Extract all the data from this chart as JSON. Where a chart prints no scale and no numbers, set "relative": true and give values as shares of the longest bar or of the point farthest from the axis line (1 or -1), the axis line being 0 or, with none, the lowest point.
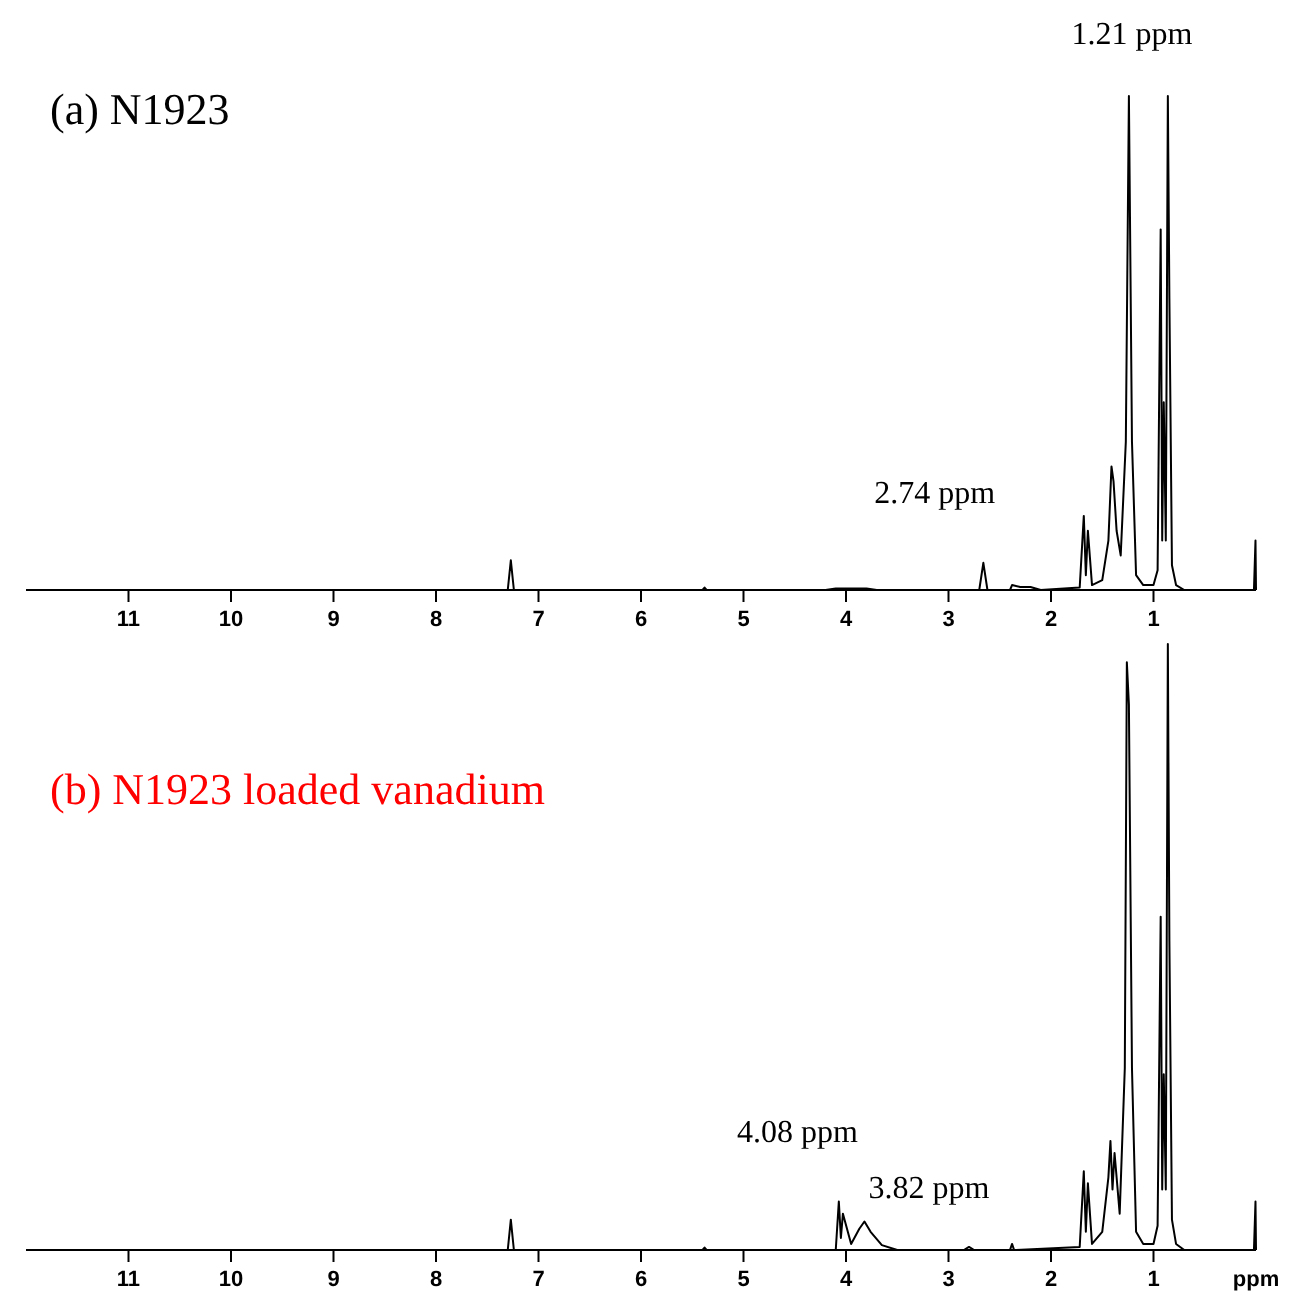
{
  "chart_data": [
    {
      "type": "line",
      "title": "(a) N1923",
      "relative": true,
      "xlim": [
        12,
        0
      ],
      "xticks": [
        11,
        10,
        9,
        8,
        7,
        6,
        5,
        4,
        3,
        2,
        1
      ],
      "x": [
        12,
        7.3,
        7.27,
        7.24,
        5.4,
        5.38,
        5.36,
        4.2,
        4.1,
        3.8,
        3.7,
        2.7,
        2.66,
        2.62,
        2.4,
        2.38,
        2.3,
        2.2,
        2.1,
        1.72,
        1.68,
        1.66,
        1.64,
        1.6,
        1.5,
        1.44,
        1.41,
        1.39,
        1.36,
        1.32,
        1.27,
        1.24,
        1.21,
        1.17,
        1.1,
        1.0,
        0.96,
        0.93,
        0.915,
        0.9,
        0.88,
        0.86,
        0.845,
        0.82,
        0.78,
        0.7,
        0.02,
        0.005,
        0
      ],
      "series": [
        {
          "color": "#000000",
          "values": [
            0,
            0,
            0.06,
            0,
            0,
            0.005,
            0,
            0,
            0.003,
            0.003,
            0,
            0,
            0.055,
            0,
            0,
            0.01,
            0.006,
            0.006,
            0,
            0.005,
            0.15,
            0.03,
            0.12,
            0.01,
            0.02,
            0.1,
            0.25,
            0.22,
            0.12,
            0.07,
            0.3,
            1,
            0.3,
            0.03,
            0.01,
            0.01,
            0.04,
            0.73,
            0.1,
            0.38,
            0.1,
            1,
            0.59,
            0.05,
            0.01,
            0,
            0,
            0.1,
            0
          ]
        }
      ],
      "annotations": [
        {
          "text": "2.74 ppm",
          "x": 2.74,
          "y": 0.055
        },
        {
          "text": "1.21 ppm",
          "x": 1.21,
          "y": 1
        }
      ]
    },
    {
      "type": "line",
      "title": "(b) N1923 loaded vanadium",
      "relative": true,
      "xlim": [
        12,
        0
      ],
      "xticks": [
        11,
        10,
        9,
        8,
        7,
        6,
        5,
        4,
        3,
        2,
        1
      ],
      "xlabel": "ppm",
      "x": [
        12,
        7.3,
        7.27,
        7.24,
        5.4,
        5.38,
        5.36,
        4.1,
        4.07,
        4.05,
        4.03,
        3.95,
        3.87,
        3.82,
        3.76,
        3.65,
        3.5,
        2.85,
        2.8,
        2.75,
        2.4,
        2.38,
        2.36,
        1.72,
        1.68,
        1.66,
        1.64,
        1.6,
        1.5,
        1.44,
        1.42,
        1.4,
        1.38,
        1.33,
        1.28,
        1.26,
        1.24,
        1.21,
        1.17,
        1.1,
        1.0,
        0.96,
        0.93,
        0.915,
        0.9,
        0.88,
        0.86,
        0.845,
        0.82,
        0.78,
        0.7,
        0.02,
        0.005,
        0
      ],
      "series": [
        {
          "color": "#000000",
          "values": [
            0,
            0,
            0.05,
            0,
            0,
            0.004,
            0,
            0,
            0.08,
            0.02,
            0.06,
            0.01,
            0.035,
            0.047,
            0.03,
            0.008,
            0,
            0,
            0.005,
            0,
            0,
            0.01,
            0,
            0.005,
            0.13,
            0.03,
            0.11,
            0.01,
            0.03,
            0.12,
            0.18,
            0.1,
            0.16,
            0.06,
            0.3,
            0.97,
            0.9,
            0.3,
            0.03,
            0.01,
            0.01,
            0.04,
            0.55,
            0.1,
            0.29,
            0.1,
            1,
            0.51,
            0.05,
            0.01,
            0,
            0,
            0.08,
            0
          ]
        }
      ],
      "annotations": [
        {
          "text": "4.08 ppm",
          "x": 4.08,
          "y": 0.08
        },
        {
          "text": "3.82 ppm",
          "x": 3.82,
          "y": 0.047
        }
      ]
    }
  ]
}
